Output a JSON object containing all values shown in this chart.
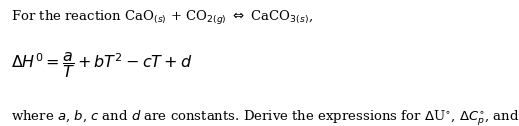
{
  "line1": "For the reaction CaO$_{(s)}$ + CO$_{2(g)}$ $\\Leftrightarrow$ CaCO$_{3(s)}$,",
  "line2": "$\\Delta H^0 = \\dfrac{a}{T} + bT^2 - cT + d$",
  "line3": "where $a$, $b$, $c$ and $d$ are constants. Derive the expressions for $\\Delta$U$^{\\circ}$, $\\Delta C_p^{\\circ}$, and $\\Delta C_v^{\\circ}$.",
  "background_color": "#ffffff",
  "text_color": "#000000",
  "font_size_line1": 9.5,
  "font_size_line2": 11.5,
  "font_size_line3": 9.5,
  "fig_width": 5.19,
  "fig_height": 1.26,
  "dpi": 100
}
